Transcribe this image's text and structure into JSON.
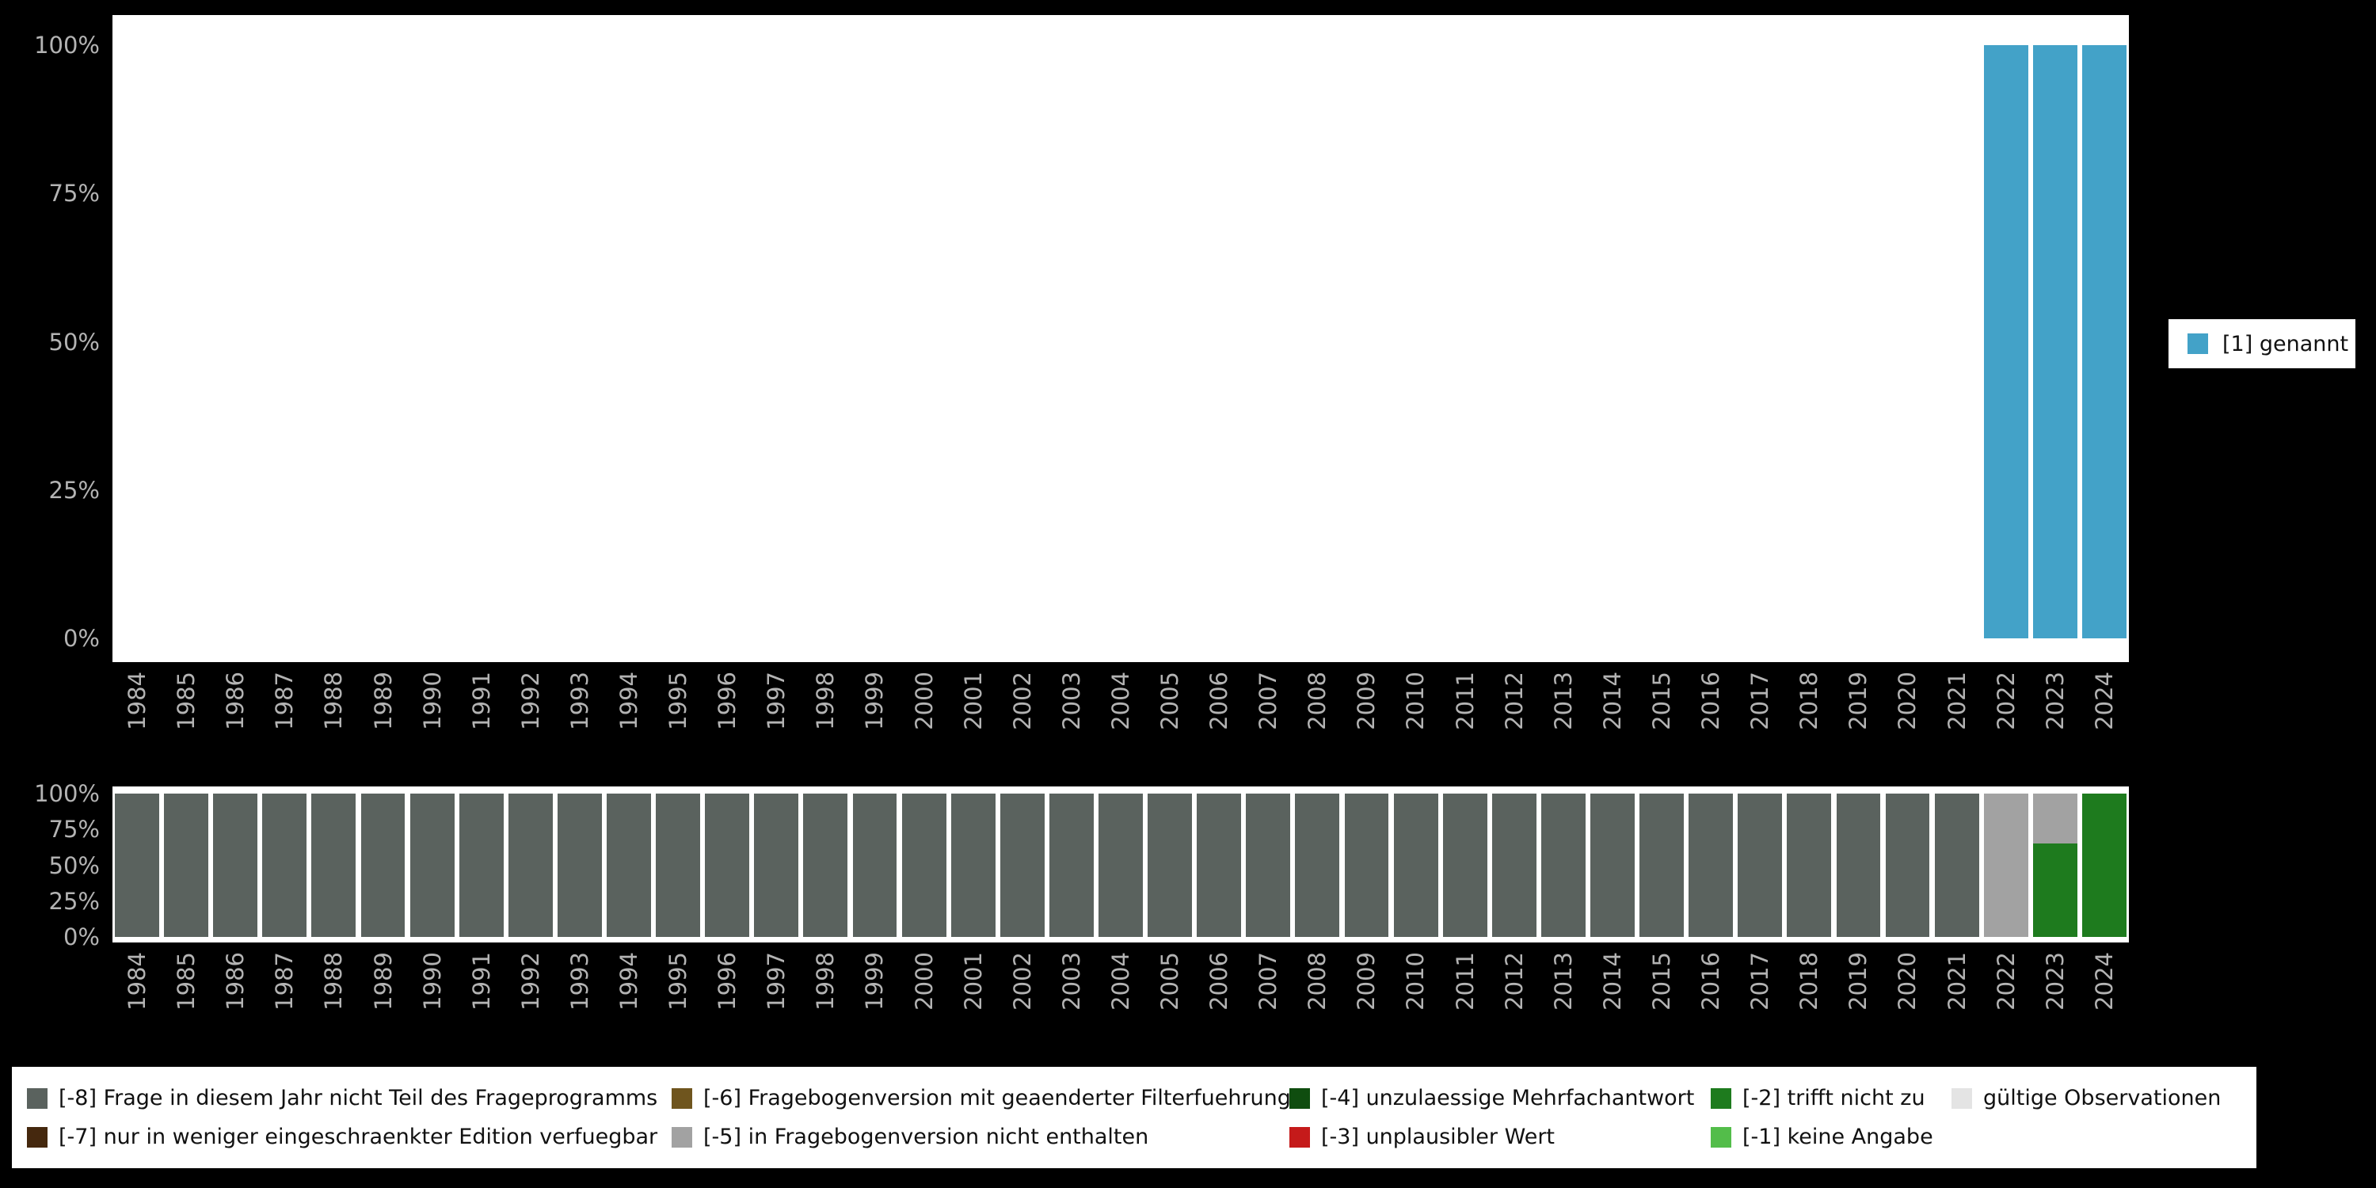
{
  "page": {
    "background": "#000000",
    "axis_text_color": "#b3b3b3"
  },
  "top_legend": {
    "items": [
      {
        "label": "[1] genannt",
        "color": "#43a2c8"
      }
    ]
  },
  "bottom_legend": {
    "rows": [
      [
        {
          "label": "[-8] Frage in diesem Jahr nicht Teil des Frageprogramms",
          "color": "#5a625e"
        },
        {
          "label": "[-6] Fragebogenversion mit geaenderter Filterfuehrung",
          "color": "#6f551e"
        },
        {
          "label": "[-4] unzulaessige Mehrfachantwort",
          "color": "#0f4d0f"
        },
        {
          "label": "[-2] trifft nicht zu",
          "color": "#1e7b1e"
        },
        {
          "label": "gültige Observationen",
          "color": "#e4e4e4"
        }
      ],
      [
        {
          "label": "[-7] nur in weniger eingeschraenkter Edition verfuegbar",
          "color": "#45280e"
        },
        {
          "label": "[-5] in Fragebogenversion nicht enthalten",
          "color": "#a2a2a2"
        },
        {
          "label": "[-3] unplausibler Wert",
          "color": "#c51a1a"
        },
        {
          "label": "[-1] keine Angabe",
          "color": "#53bd4a"
        }
      ]
    ]
  },
  "chart_data": [
    {
      "name": "valid-values-chart",
      "type": "bar",
      "stacked": true,
      "title": "",
      "xlabel": "",
      "ylabel": "",
      "ylim": [
        0,
        100
      ],
      "grid": false,
      "legend_position": "right",
      "yticks": [
        "100%",
        "75%",
        "50%",
        "25%",
        "0%"
      ],
      "categories": [
        "1984",
        "1985",
        "1986",
        "1987",
        "1988",
        "1989",
        "1990",
        "1991",
        "1992",
        "1993",
        "1994",
        "1995",
        "1996",
        "1997",
        "1998",
        "1999",
        "2000",
        "2001",
        "2002",
        "2003",
        "2004",
        "2005",
        "2006",
        "2007",
        "2008",
        "2009",
        "2010",
        "2011",
        "2012",
        "2013",
        "2014",
        "2015",
        "2016",
        "2017",
        "2018",
        "2019",
        "2020",
        "2021",
        "2022",
        "2023",
        "2024"
      ],
      "series": [
        {
          "name": "[1] genannt",
          "color": "#43a2c8",
          "values": [
            0,
            0,
            0,
            0,
            0,
            0,
            0,
            0,
            0,
            0,
            0,
            0,
            0,
            0,
            0,
            0,
            0,
            0,
            0,
            0,
            0,
            0,
            0,
            0,
            0,
            0,
            0,
            0,
            0,
            0,
            0,
            0,
            0,
            0,
            0,
            0,
            0,
            0,
            100,
            100,
            100
          ]
        }
      ]
    },
    {
      "name": "missing-values-chart",
      "type": "bar",
      "stacked": true,
      "title": "",
      "xlabel": "",
      "ylabel": "",
      "ylim": [
        0,
        100
      ],
      "grid": false,
      "legend_position": "bottom",
      "yticks": [
        "100%",
        "75%",
        "50%",
        "25%",
        "0%"
      ],
      "categories": [
        "1984",
        "1985",
        "1986",
        "1987",
        "1988",
        "1989",
        "1990",
        "1991",
        "1992",
        "1993",
        "1994",
        "1995",
        "1996",
        "1997",
        "1998",
        "1999",
        "2000",
        "2001",
        "2002",
        "2003",
        "2004",
        "2005",
        "2006",
        "2007",
        "2008",
        "2009",
        "2010",
        "2011",
        "2012",
        "2013",
        "2014",
        "2015",
        "2016",
        "2017",
        "2018",
        "2019",
        "2020",
        "2021",
        "2022",
        "2023",
        "2024"
      ],
      "series": [
        {
          "name": "[-8] Frage in diesem Jahr nicht Teil des Frageprogramms",
          "color": "#5a625e",
          "values": [
            100,
            100,
            100,
            100,
            100,
            100,
            100,
            100,
            100,
            100,
            100,
            100,
            100,
            100,
            100,
            100,
            100,
            100,
            100,
            100,
            100,
            100,
            100,
            100,
            100,
            100,
            100,
            100,
            100,
            100,
            100,
            100,
            100,
            100,
            100,
            100,
            100,
            100,
            0,
            0,
            0
          ]
        },
        {
          "name": "[-5] in Fragebogenversion nicht enthalten",
          "color": "#a2a2a2",
          "values": [
            0,
            0,
            0,
            0,
            0,
            0,
            0,
            0,
            0,
            0,
            0,
            0,
            0,
            0,
            0,
            0,
            0,
            0,
            0,
            0,
            0,
            0,
            0,
            0,
            0,
            0,
            0,
            0,
            0,
            0,
            0,
            0,
            0,
            0,
            0,
            0,
            0,
            0,
            100,
            35,
            0
          ]
        },
        {
          "name": "[-2] trifft nicht zu",
          "color": "#1e7b1e",
          "values": [
            0,
            0,
            0,
            0,
            0,
            0,
            0,
            0,
            0,
            0,
            0,
            0,
            0,
            0,
            0,
            0,
            0,
            0,
            0,
            0,
            0,
            0,
            0,
            0,
            0,
            0,
            0,
            0,
            0,
            0,
            0,
            0,
            0,
            0,
            0,
            0,
            0,
            0,
            0,
            65,
            100
          ]
        }
      ]
    }
  ]
}
